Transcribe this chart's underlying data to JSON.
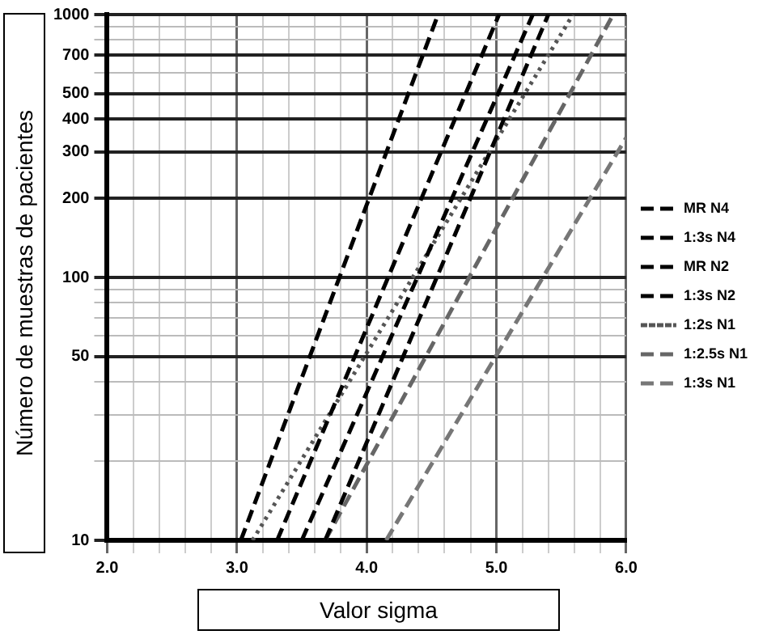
{
  "chart_data": {
    "type": "line",
    "xlabel": "Valor sigma",
    "ylabel": "Número de muestras de pacientes",
    "log": "y",
    "grid": true,
    "legend": "right",
    "marker": "none",
    "xlim": [
      2.0,
      6.0
    ],
    "xticks": [
      {
        "value": 2,
        "label": "2.0"
      },
      {
        "value": 2.2,
        "label": null
      },
      {
        "value": 2.4,
        "label": null
      },
      {
        "value": 2.6,
        "label": null
      },
      {
        "value": 2.8,
        "label": null
      },
      {
        "value": 3,
        "label": "3.0"
      },
      {
        "value": 3.2,
        "label": null
      },
      {
        "value": 3.4,
        "label": null
      },
      {
        "value": 3.6,
        "label": null
      },
      {
        "value": 3.8,
        "label": null
      },
      {
        "value": 4,
        "label": "4.0"
      },
      {
        "value": 4.2,
        "label": null
      },
      {
        "value": 4.4,
        "label": null
      },
      {
        "value": 4.6,
        "label": null
      },
      {
        "value": 4.8,
        "label": null
      },
      {
        "value": 5,
        "label": "5.0"
      },
      {
        "value": 5.2,
        "label": null
      },
      {
        "value": 5.4,
        "label": null
      },
      {
        "value": 5.6,
        "label": null
      },
      {
        "value": 5.8,
        "label": null
      },
      {
        "value": 6,
        "label": "6.0"
      }
    ],
    "ylim": [
      10,
      1000
    ],
    "yticks": [
      10,
      {
        "value": 20,
        "label": null
      },
      {
        "value": 30,
        "label": null
      },
      {
        "value": 40,
        "label": null
      },
      50,
      {
        "value": 60,
        "label": null
      },
      {
        "value": 70,
        "label": null
      },
      {
        "value": 80,
        "label": null
      },
      {
        "value": 90,
        "label": null
      },
      100,
      200,
      300,
      400,
      500,
      {
        "value": 600,
        "label": null
      },
      700,
      {
        "value": 800,
        "label": null
      },
      {
        "value": 900,
        "label": null
      },
      1000
    ],
    "series": [
      {
        "name": "MR N4",
        "color": "#000000",
        "line_style": "dashed",
        "x": [
          3.03,
          4.55
        ],
        "values": [
          10,
          1000
        ]
      },
      {
        "name": "1:3s N4",
        "color": "#000000",
        "line_style": "dashed",
        "x": [
          3.31,
          5.02
        ],
        "values": [
          10,
          1000
        ]
      },
      {
        "name": "MR N2",
        "color": "#000000",
        "line_style": "dashed",
        "x": [
          3.5,
          5.28
        ],
        "values": [
          10,
          1000
        ]
      },
      {
        "name": "1:3s N2",
        "color": "#000000",
        "line_style": "dashed",
        "x": [
          3.68,
          5.4
        ],
        "values": [
          10,
          1000
        ]
      },
      {
        "name": "1:2s N1",
        "color": "#555555",
        "line_style": "dotted",
        "x": [
          3.12,
          5.59
        ],
        "values": [
          10,
          1000
        ]
      },
      {
        "name": "1:2.5s N1",
        "color": "#666666",
        "line_style": "dashed",
        "x": [
          3.68,
          5.9
        ],
        "values": [
          10,
          1000
        ]
      },
      {
        "name": "1:3s N1",
        "color": "#777777",
        "line_style": "dashed",
        "x": [
          4.15,
          6.0
        ],
        "values": [
          10,
          340
        ]
      }
    ]
  }
}
